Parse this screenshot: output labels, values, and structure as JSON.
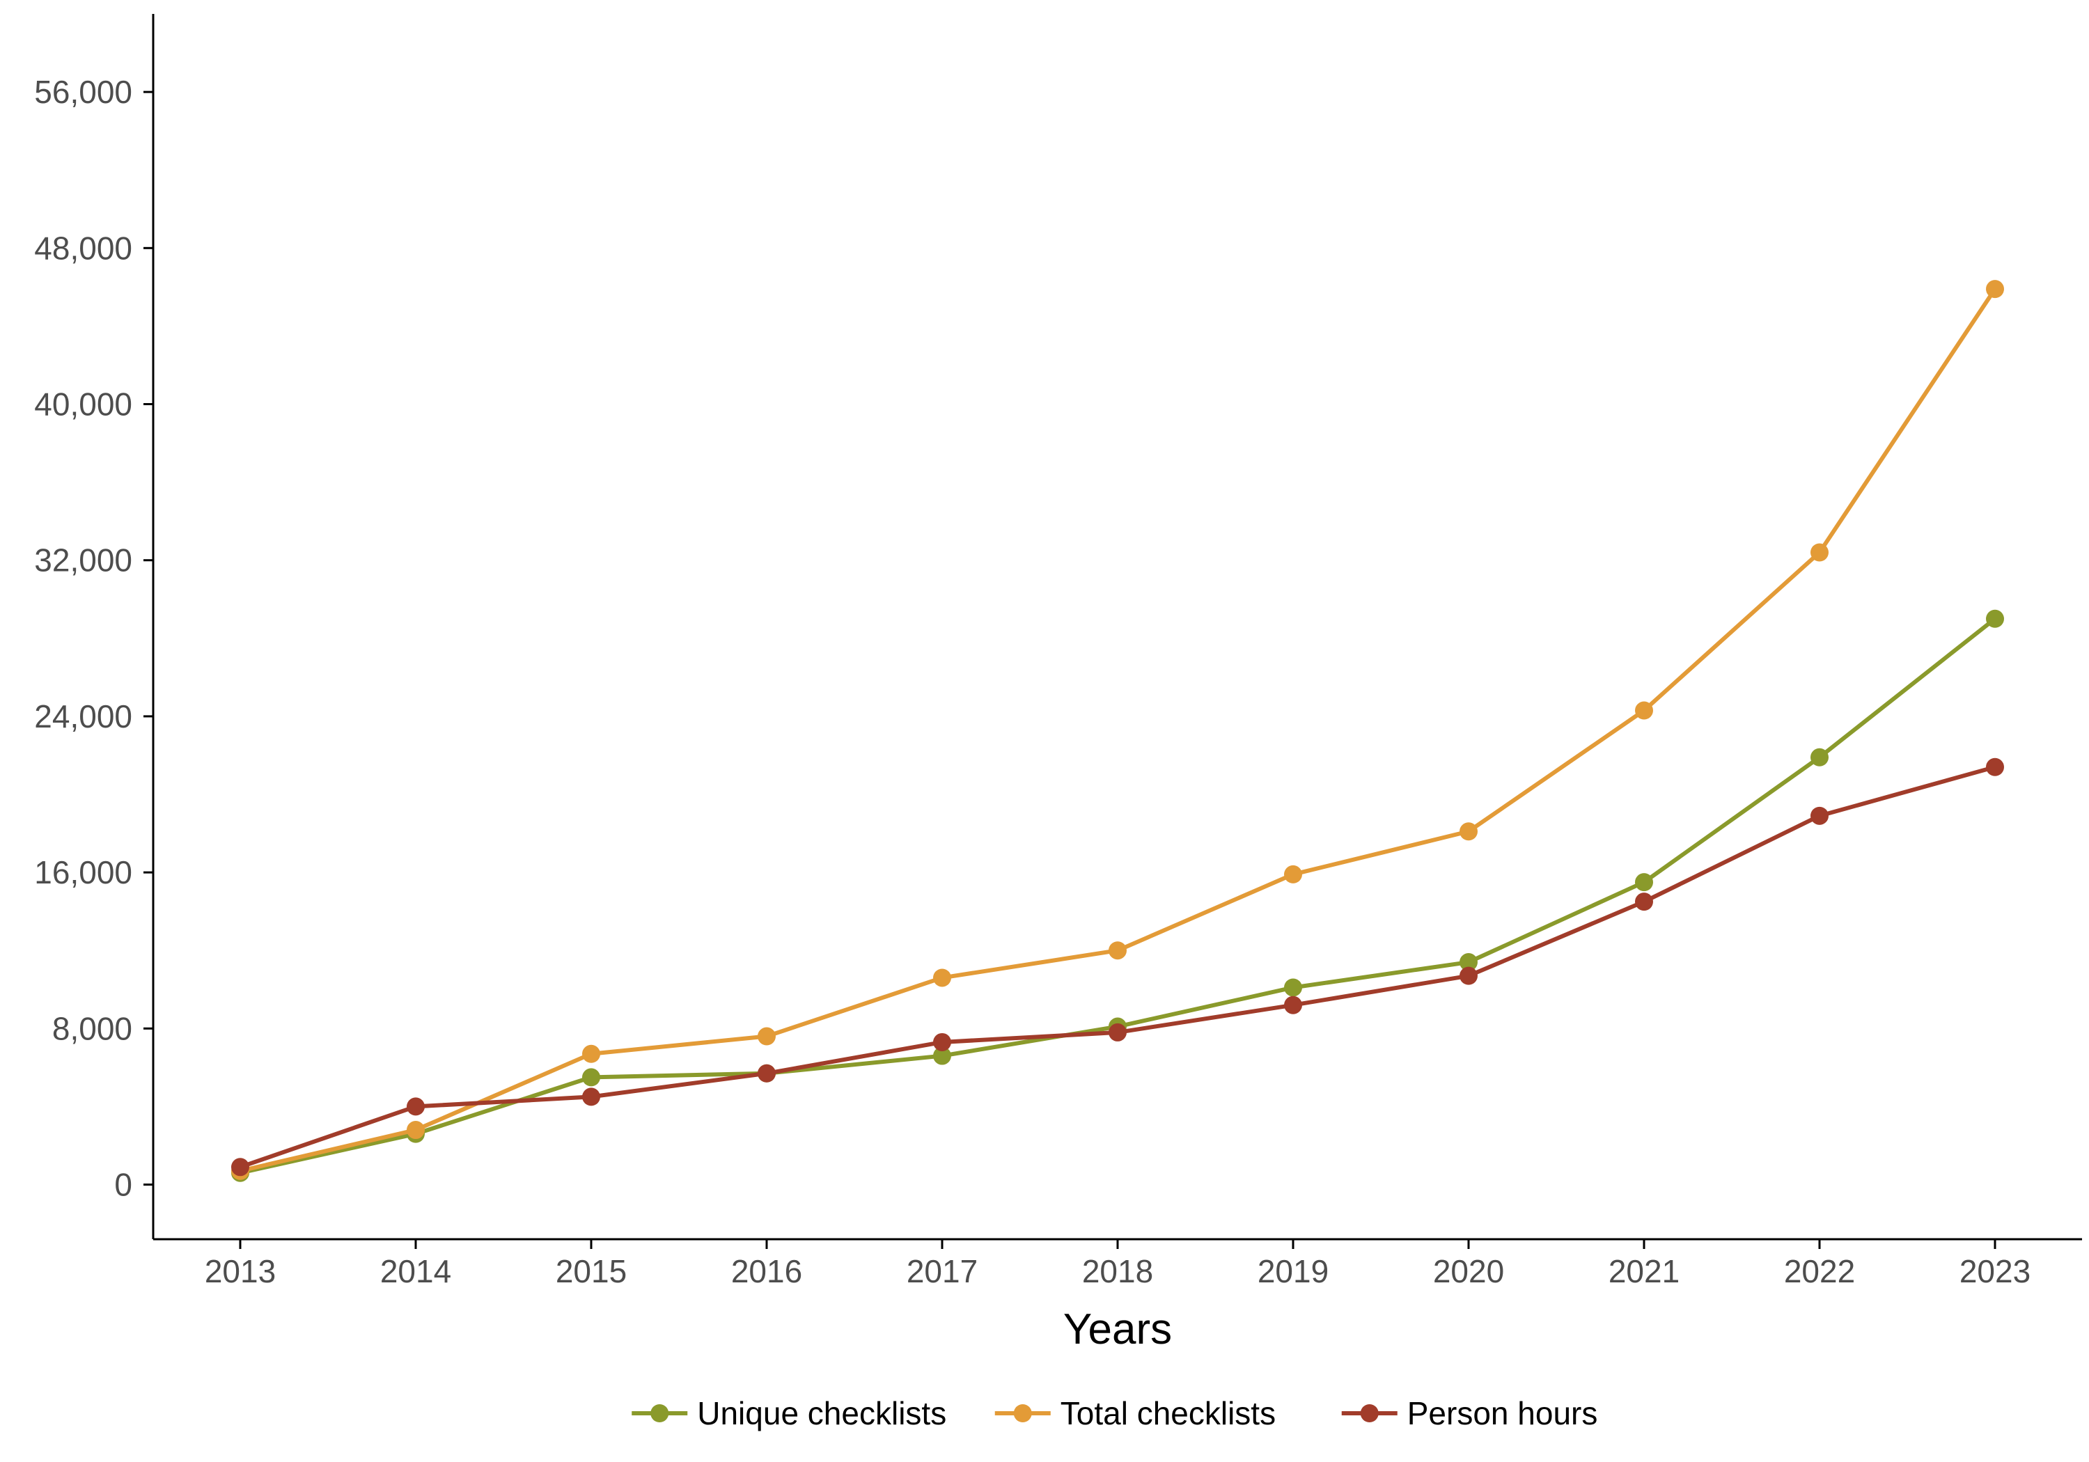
{
  "chart_data": {
    "type": "line",
    "title": "",
    "xlabel": "Years",
    "ylabel": "",
    "x": [
      "2013",
      "2014",
      "2015",
      "2016",
      "2017",
      "2018",
      "2019",
      "2020",
      "2021",
      "2022",
      "2023"
    ],
    "ylim": [
      -2800,
      60000
    ],
    "yticks": [
      0,
      8000,
      16000,
      24000,
      32000,
      40000,
      48000,
      56000
    ],
    "ytick_labels": [
      "0",
      "8,000",
      "16,000",
      "24,000",
      "32,000",
      "40,000",
      "48,000",
      "56,000"
    ],
    "grid": false,
    "legend_position": "bottom",
    "series": [
      {
        "name": "Unique checklists",
        "color": "#8a9a2b",
        "values": [
          600,
          2600,
          5500,
          5700,
          6600,
          8100,
          10100,
          11400,
          15500,
          21900,
          29000
        ]
      },
      {
        "name": "Total checklists",
        "color": "#e39b37",
        "values": [
          700,
          2800,
          6700,
          7600,
          10600,
          12000,
          15900,
          18100,
          24300,
          32400,
          45900
        ]
      },
      {
        "name": "Person hours",
        "color": "#a13c2a",
        "values": [
          900,
          4000,
          4500,
          5700,
          7300,
          7800,
          9200,
          10700,
          14500,
          18900,
          21400
        ]
      }
    ]
  }
}
